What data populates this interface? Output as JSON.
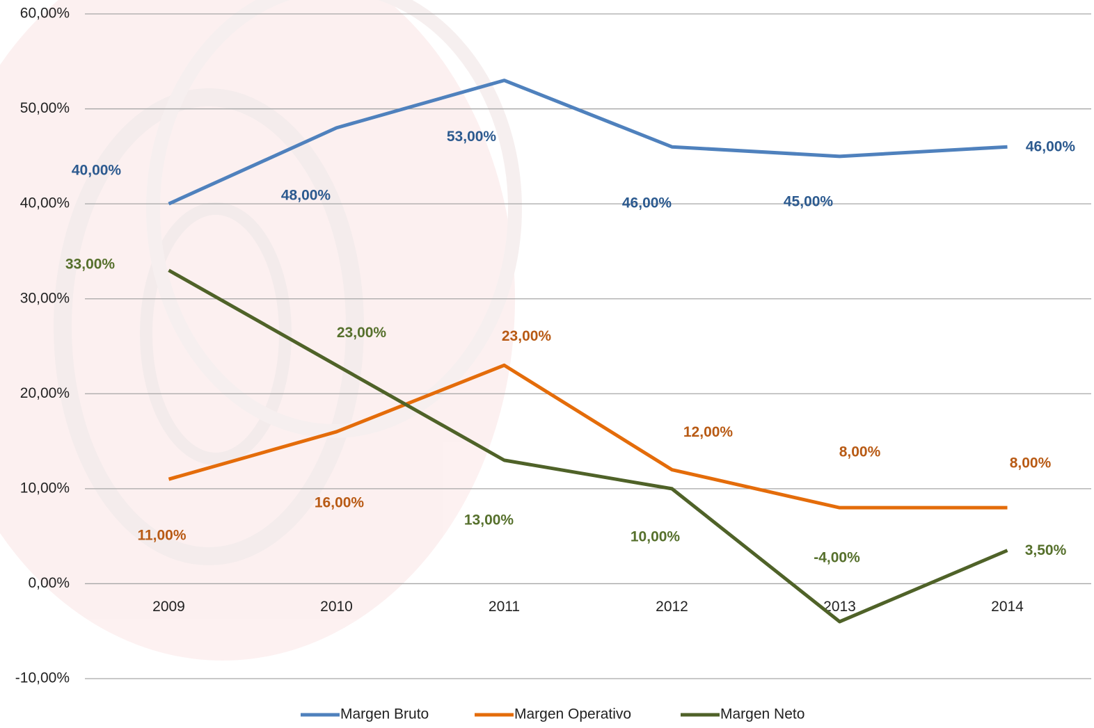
{
  "chart_data": {
    "type": "line",
    "categories": [
      "2009",
      "2010",
      "2011",
      "2012",
      "2013",
      "2014"
    ],
    "ylim": [
      -10,
      60
    ],
    "yticks": [
      {
        "value": -10,
        "label": "-10,00%"
      },
      {
        "value": 0,
        "label": "0,00%"
      },
      {
        "value": 10,
        "label": "10,00%"
      },
      {
        "value": 20,
        "label": "20,00%"
      },
      {
        "value": 30,
        "label": "30,00%"
      },
      {
        "value": 40,
        "label": "40,00%"
      },
      {
        "value": 50,
        "label": "50,00%"
      },
      {
        "value": 60,
        "label": "60,00%"
      }
    ],
    "grid": true,
    "legend": "bottom",
    "series": [
      {
        "name": "Margen Bruto",
        "color": "#4f81bd",
        "label_color": "#2c5a8f",
        "values": [
          40,
          48,
          53,
          46,
          45,
          46
        ],
        "value_labels": [
          "40,00%",
          "48,00%",
          "53,00%",
          "46,00%",
          "45,00%",
          "46,00%"
        ]
      },
      {
        "name": "Margen Operativo",
        "color": "#e46c0a",
        "label_color": "#b85a14",
        "values": [
          11,
          16,
          23,
          12,
          8,
          8
        ],
        "value_labels": [
          "11,00%",
          "16,00%",
          "23,00%",
          "12,00%",
          "8,00%",
          "8,00%"
        ]
      },
      {
        "name": "Margen Neto",
        "color": "#4f6228",
        "label_color": "#56702c",
        "values": [
          33,
          23,
          13,
          10,
          -4,
          3.5
        ],
        "value_labels": [
          "33,00%",
          "23,00%",
          "13,00%",
          "10,00%",
          "-4,00%",
          "3,50%"
        ]
      }
    ]
  }
}
